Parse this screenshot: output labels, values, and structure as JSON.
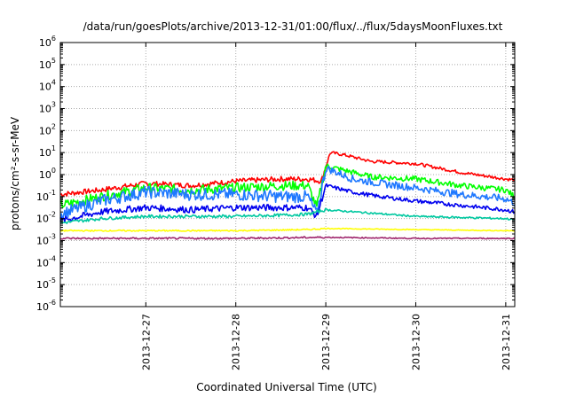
{
  "chart_data": {
    "type": "line",
    "title": "/data/run/goesPlots/archive/2013-12-31/01:00/flux/../flux/5daysMoonFluxes.txt",
    "xlabel": "Coordinated Universal Time (UTC)",
    "ylabel": "protons/cm²-s-sr-MeV",
    "yscale": "log",
    "ylim": [
      1e-06,
      1000000.0
    ],
    "xlim_days": [
      -0.95,
      4.1
    ],
    "xticks": [
      {
        "pos": 0,
        "label": "2013-12-27"
      },
      {
        "pos": 1,
        "label": "2013-12-28"
      },
      {
        "pos": 2,
        "label": "2013-12-29"
      },
      {
        "pos": 3,
        "label": "2013-12-30"
      },
      {
        "pos": 4,
        "label": "2013-12-31"
      }
    ],
    "yticks": [
      {
        "exp": -6,
        "label": "10",
        "sup": "-6"
      },
      {
        "exp": -5,
        "label": "10",
        "sup": "-5"
      },
      {
        "exp": -4,
        "label": "10",
        "sup": "-4"
      },
      {
        "exp": -3,
        "label": "10",
        "sup": "-3"
      },
      {
        "exp": -2,
        "label": "10",
        "sup": "-2"
      },
      {
        "exp": -1,
        "label": "10",
        "sup": "-1"
      },
      {
        "exp": 0,
        "label": "10",
        "sup": "0"
      },
      {
        "exp": 1,
        "label": "10",
        "sup": "1"
      },
      {
        "exp": 2,
        "label": "10",
        "sup": "2"
      },
      {
        "exp": 3,
        "label": "10",
        "sup": "3"
      },
      {
        "exp": 4,
        "label": "10",
        "sup": "4"
      },
      {
        "exp": 5,
        "label": "10",
        "sup": "5"
      },
      {
        "exp": 6,
        "label": "10",
        "sup": "6"
      }
    ],
    "grid": true,
    "legend": "none",
    "series": [
      {
        "color": "#ff0000",
        "x": [
          -0.95,
          -0.5,
          0,
          0.5,
          1,
          1.5,
          1.8,
          1.95,
          2.05,
          2.2,
          2.5,
          3,
          3.5,
          4,
          4.1
        ],
        "log10y": [
          -0.9,
          -0.7,
          -0.4,
          -0.5,
          -0.3,
          -0.2,
          -0.2,
          -0.3,
          1.0,
          0.9,
          0.6,
          0.5,
          0.1,
          -0.2,
          -0.25
        ]
      },
      {
        "color": "#00ff00",
        "x": [
          -0.95,
          -0.5,
          0,
          0.5,
          1,
          1.5,
          1.8,
          1.9,
          2.0,
          2.2,
          2.5,
          3,
          3.5,
          4,
          4.1
        ],
        "log10y": [
          -1.4,
          -1.0,
          -0.6,
          -0.7,
          -0.6,
          -0.5,
          -0.5,
          -1.5,
          0.4,
          0.2,
          -0.1,
          -0.2,
          -0.5,
          -0.7,
          -1.0
        ]
      },
      {
        "color": "#1e78ff",
        "x": [
          -0.95,
          -0.5,
          0,
          0.5,
          1,
          1.5,
          1.8,
          1.9,
          2.0,
          2.3,
          2.6,
          3,
          3.5,
          4,
          4.1
        ],
        "log10y": [
          -1.8,
          -1.2,
          -0.8,
          -0.9,
          -0.9,
          -1.0,
          -1.0,
          -1.8,
          0.3,
          -0.2,
          -0.4,
          -0.6,
          -0.9,
          -1.1,
          -1.3
        ]
      },
      {
        "color": "#0000ee",
        "x": [
          -0.95,
          -0.5,
          0,
          0.5,
          1,
          1.5,
          1.8,
          1.9,
          2.0,
          2.3,
          2.6,
          3,
          3.5,
          4,
          4.1
        ],
        "log10y": [
          -2.1,
          -1.7,
          -1.5,
          -1.6,
          -1.5,
          -1.5,
          -1.5,
          -1.9,
          -0.5,
          -0.8,
          -1.0,
          -1.2,
          -1.4,
          -1.6,
          -1.7
        ]
      },
      {
        "color": "#00c8a0",
        "x": [
          -0.95,
          -0.5,
          0,
          0.5,
          1,
          1.5,
          1.8,
          2.0,
          2.5,
          3,
          3.5,
          4,
          4.1
        ],
        "log10y": [
          -2.2,
          -2.0,
          -1.9,
          -1.9,
          -1.9,
          -1.85,
          -1.8,
          -1.6,
          -1.75,
          -1.9,
          -1.95,
          -2.0,
          -2.05
        ]
      },
      {
        "color": "#ffff00",
        "x": [
          -0.95,
          0,
          1,
          1.8,
          2.0,
          3,
          4,
          4.1
        ],
        "log10y": [
          -2.55,
          -2.55,
          -2.55,
          -2.5,
          -2.45,
          -2.5,
          -2.55,
          -2.55
        ]
      },
      {
        "color": "#a0286e",
        "x": [
          -0.95,
          0,
          1,
          2,
          3,
          4,
          4.1
        ],
        "log10y": [
          -2.9,
          -2.9,
          -2.9,
          -2.85,
          -2.9,
          -2.9,
          -2.9
        ]
      }
    ]
  }
}
